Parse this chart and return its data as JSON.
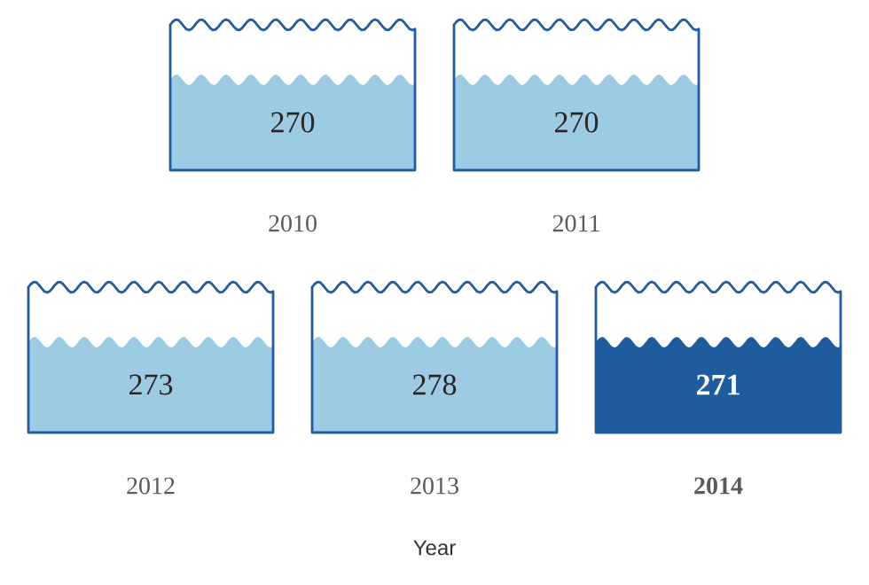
{
  "chart_data": {
    "type": "other",
    "xlabel": "Year",
    "categories": [
      "2010",
      "2011",
      "2012",
      "2013",
      "2014"
    ],
    "values": [
      270,
      270,
      273,
      278,
      271
    ],
    "colors": [
      "#9dcbe3",
      "#9dcbe3",
      "#9dcbe3",
      "#9dcbe3",
      "#1f5c9d"
    ],
    "data_labels": true
  }
}
